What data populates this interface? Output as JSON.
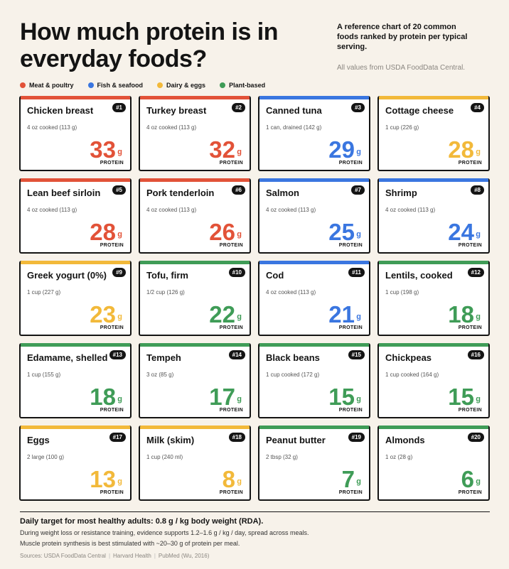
{
  "title": "How much protein is in everyday foods?",
  "intro": "A reference chart of 20 common foods ranked by protein per typical serving.",
  "note": "All values from USDA FoodData Central.",
  "legend": [
    {
      "label": "Meat & poultry",
      "color": "#e25238"
    },
    {
      "label": "Fish & seafood",
      "color": "#3a76e0"
    },
    {
      "label": "Dairy & eggs",
      "color": "#f2b93a"
    },
    {
      "label": "Plant-based",
      "color": "#3f9c57"
    }
  ],
  "unit": "g",
  "protein_label": "PROTEIN",
  "foods": [
    {
      "rank": "#1",
      "name": "Chicken breast",
      "serving": "4 oz cooked (113 g)",
      "grams": "33",
      "color": "#e25238"
    },
    {
      "rank": "#2",
      "name": "Turkey breast",
      "serving": "4 oz cooked (113 g)",
      "grams": "32",
      "color": "#e25238"
    },
    {
      "rank": "#3",
      "name": "Canned tuna",
      "serving": "1 can, drained (142 g)",
      "grams": "29",
      "color": "#3a76e0"
    },
    {
      "rank": "#4",
      "name": "Cottage cheese",
      "serving": "1 cup (226 g)",
      "grams": "28",
      "color": "#f2b93a"
    },
    {
      "rank": "#5",
      "name": "Lean beef sirloin",
      "serving": "4 oz cooked (113 g)",
      "grams": "28",
      "color": "#e25238"
    },
    {
      "rank": "#6",
      "name": "Pork tenderloin",
      "serving": "4 oz cooked (113 g)",
      "grams": "26",
      "color": "#e25238"
    },
    {
      "rank": "#7",
      "name": "Salmon",
      "serving": "4 oz cooked (113 g)",
      "grams": "25",
      "color": "#3a76e0"
    },
    {
      "rank": "#8",
      "name": "Shrimp",
      "serving": "4 oz cooked (113 g)",
      "grams": "24",
      "color": "#3a76e0"
    },
    {
      "rank": "#9",
      "name": "Greek yogurt (0%)",
      "serving": "1 cup (227 g)",
      "grams": "23",
      "color": "#f2b93a"
    },
    {
      "rank": "#10",
      "name": "Tofu, firm",
      "serving": "1/2 cup (126 g)",
      "grams": "22",
      "color": "#3f9c57"
    },
    {
      "rank": "#11",
      "name": "Cod",
      "serving": "4 oz cooked (113 g)",
      "grams": "21",
      "color": "#3a76e0"
    },
    {
      "rank": "#12",
      "name": "Lentils, cooked",
      "serving": "1 cup (198 g)",
      "grams": "18",
      "color": "#3f9c57"
    },
    {
      "rank": "#13",
      "name": "Edamame, shelled",
      "serving": "1 cup (155 g)",
      "grams": "18",
      "color": "#3f9c57"
    },
    {
      "rank": "#14",
      "name": "Tempeh",
      "serving": "3 oz (85 g)",
      "grams": "17",
      "color": "#3f9c57"
    },
    {
      "rank": "#15",
      "name": "Black beans",
      "serving": "1 cup cooked (172 g)",
      "grams": "15",
      "color": "#3f9c57"
    },
    {
      "rank": "#16",
      "name": "Chickpeas",
      "serving": "1 cup cooked (164 g)",
      "grams": "15",
      "color": "#3f9c57"
    },
    {
      "rank": "#17",
      "name": "Eggs",
      "serving": "2 large (100 g)",
      "grams": "13",
      "color": "#f2b93a"
    },
    {
      "rank": "#18",
      "name": "Milk (skim)",
      "serving": "1 cup (240 ml)",
      "grams": "8",
      "color": "#f2b93a"
    },
    {
      "rank": "#19",
      "name": "Peanut butter",
      "serving": "2 tbsp (32 g)",
      "grams": "7",
      "color": "#3f9c57"
    },
    {
      "rank": "#20",
      "name": "Almonds",
      "serving": "1 oz (28 g)",
      "grams": "6",
      "color": "#3f9c57"
    }
  ],
  "footer": {
    "target": "Daily target for most healthy adults: 0.8 g / kg body weight (RDA).",
    "line1": "During weight loss or resistance training, evidence supports 1.2–1.6 g / kg / day, spread across meals.",
    "line2": "Muscle protein synthesis is best stimulated with ~20–30 g of protein per meal.",
    "sources": [
      "Sources: USDA FoodData Central",
      "Harvard Health",
      "PubMed (Wu, 2016)"
    ]
  }
}
